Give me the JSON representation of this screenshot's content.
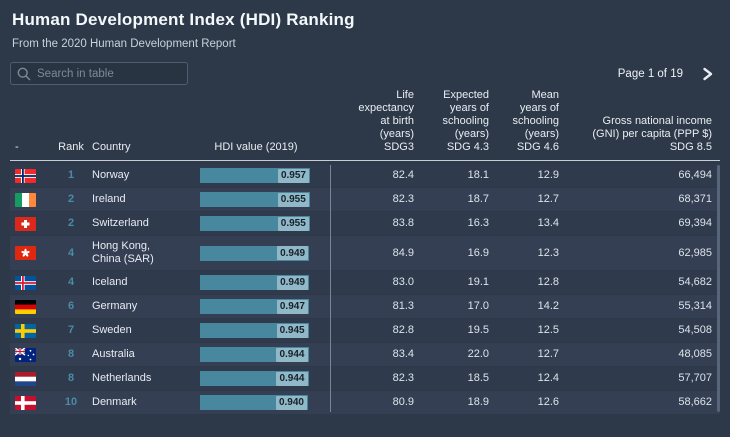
{
  "page": {
    "title": "Human Development Index (HDI) Ranking",
    "subtitle": "From the 2020 Human Development Report",
    "search": {
      "placeholder": "Search in table"
    },
    "pagination": {
      "label": "Page 1 of 19"
    }
  },
  "table": {
    "columns": {
      "flag": "-",
      "rank": "Rank",
      "country": "Country",
      "hdi": "HDI value (2019)",
      "life_expectancy": "Life expectancy at birth (years) SDG3",
      "expected_schooling": "Expected years of schooling (years) SDG 4.3",
      "mean_schooling": "Mean years of schooling (years) SDG 4.6",
      "gni": "Gross national income (GNI) per capita (PPP $) SDG 8.5"
    },
    "hdi_bar_max": 0.957,
    "rows": [
      {
        "flag": "norway",
        "rank": "1",
        "country": "Norway",
        "hdi": "0.957",
        "life_expectancy": "82.4",
        "expected_schooling": "18.1",
        "mean_schooling": "12.9",
        "gni": "66,494"
      },
      {
        "flag": "ireland",
        "rank": "2",
        "country": "Ireland",
        "hdi": "0.955",
        "life_expectancy": "82.3",
        "expected_schooling": "18.7",
        "mean_schooling": "12.7",
        "gni": "68,371"
      },
      {
        "flag": "switzerland",
        "rank": "2",
        "country": "Switzerland",
        "hdi": "0.955",
        "life_expectancy": "83.8",
        "expected_schooling": "16.3",
        "mean_schooling": "13.4",
        "gni": "69,394"
      },
      {
        "flag": "hong-kong",
        "rank": "4",
        "country": "Hong Kong, China (SAR)",
        "hdi": "0.949",
        "life_expectancy": "84.9",
        "expected_schooling": "16.9",
        "mean_schooling": "12.3",
        "gni": "62,985"
      },
      {
        "flag": "iceland",
        "rank": "4",
        "country": "Iceland",
        "hdi": "0.949",
        "life_expectancy": "83.0",
        "expected_schooling": "19.1",
        "mean_schooling": "12.8",
        "gni": "54,682"
      },
      {
        "flag": "germany",
        "rank": "6",
        "country": "Germany",
        "hdi": "0.947",
        "life_expectancy": "81.3",
        "expected_schooling": "17.0",
        "mean_schooling": "14.2",
        "gni": "55,314"
      },
      {
        "flag": "sweden",
        "rank": "7",
        "country": "Sweden",
        "hdi": "0.945",
        "life_expectancy": "82.8",
        "expected_schooling": "19.5",
        "mean_schooling": "12.5",
        "gni": "54,508"
      },
      {
        "flag": "australia",
        "rank": "8",
        "country": "Australia",
        "hdi": "0.944",
        "life_expectancy": "83.4",
        "expected_schooling": "22.0",
        "mean_schooling": "12.7",
        "gni": "48,085"
      },
      {
        "flag": "netherlands",
        "rank": "8",
        "country": "Netherlands",
        "hdi": "0.944",
        "life_expectancy": "82.3",
        "expected_schooling": "18.5",
        "mean_schooling": "12.4",
        "gni": "57,707"
      },
      {
        "flag": "denmark",
        "rank": "10",
        "country": "Denmark",
        "hdi": "0.940",
        "life_expectancy": "80.9",
        "expected_schooling": "18.9",
        "mean_schooling": "12.6",
        "gni": "58,662"
      }
    ]
  },
  "colors": {
    "background": "#2d3949",
    "row_even": "#2f3a4c",
    "row_odd": "#343f53",
    "hdi_bar": "#47889e",
    "rank_text": "#4b8ba6",
    "column_divider": "#9aa4b2"
  }
}
